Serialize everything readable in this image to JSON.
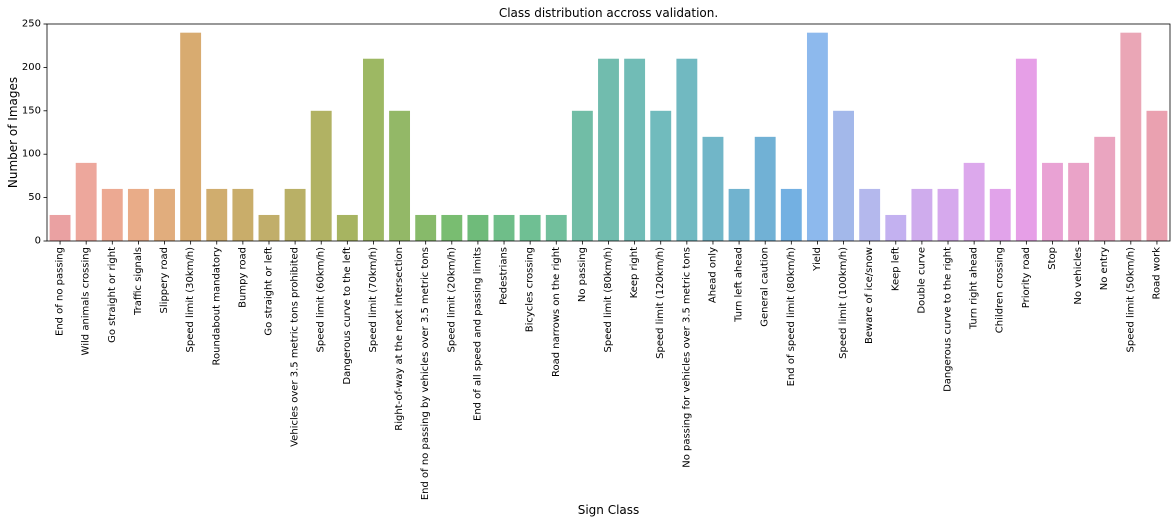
{
  "chart_data": {
    "type": "bar",
    "title": "Class distribution accross validation.",
    "xlabel": "Sign Class",
    "ylabel": "Number of Images",
    "ylim": [
      0,
      250
    ],
    "yticks": [
      0,
      50,
      100,
      150,
      200,
      250
    ],
    "grid": false,
    "categories": [
      "End of no passing",
      "Wild animals crossing",
      "Go straight or right",
      "Traffic signals",
      "Slippery road",
      "Speed limit (30km/h)",
      "Roundabout mandatory",
      "Bumpy road",
      "Go straight or left",
      "Vehicles over 3.5 metric tons prohibited",
      "Speed limit (60km/h)",
      "Dangerous curve to the left",
      "Speed limit (70km/h)",
      "Right-of-way at the next intersection",
      "End of no passing by vehicles over 3.5 metric tons",
      "Speed limit (20km/h)",
      "End of all speed and passing limits",
      "Pedestrians",
      "Bicycles crossing",
      "Road narrows on the right",
      "No passing",
      "Speed limit (80km/h)",
      "Keep right",
      "Speed limit (120km/h)",
      "No passing for vehicles over 3.5 metric tons",
      "Ahead only",
      "Turn left ahead",
      "General caution",
      "End of speed limit (80km/h)",
      "Yield",
      "Speed limit (100km/h)",
      "Beware of ice/snow",
      "Keep left",
      "Double curve",
      "Dangerous curve to the right",
      "Turn right ahead",
      "Children crossing",
      "Priority road",
      "Stop",
      "No vehicles",
      "No entry",
      "Speed limit (50km/h)",
      "Road work"
    ],
    "values": [
      30,
      90,
      60,
      60,
      60,
      240,
      60,
      60,
      30,
      60,
      150,
      30,
      210,
      150,
      30,
      30,
      30,
      30,
      30,
      30,
      150,
      210,
      210,
      150,
      210,
      120,
      60,
      120,
      60,
      240,
      150,
      60,
      30,
      60,
      60,
      90,
      60,
      210,
      90,
      90,
      120,
      240,
      150
    ],
    "colors": [
      "#eaa1a2",
      "#eda79c",
      "#eca992",
      "#e9ac88",
      "#e1ad7d",
      "#d8ab70",
      "#d0ad6e",
      "#c9ad6a",
      "#c1ae6a",
      "#b9b066",
      "#b1b263",
      "#a7b461",
      "#9db863",
      "#93b867",
      "#87ba6a",
      "#79bd71",
      "#6fbb7a",
      "#6fbe89",
      "#6fbf93",
      "#71bf9c",
      "#71bda6",
      "#71bcae",
      "#71bcb6",
      "#71bbbd",
      "#71b9c1",
      "#71b6c8",
      "#71b3cf",
      "#71b1d5",
      "#73b0e2",
      "#8db9ed",
      "#a3b8ea",
      "#b4b8ed",
      "#c3b1f0",
      "#cfaced",
      "#d6a9ed",
      "#dca8ec",
      "#e1a3ea",
      "#e69fe7",
      "#e9a2d4",
      "#eaa3c8",
      "#eaa5c0",
      "#eaa6b6",
      "#eaa1b0"
    ]
  }
}
